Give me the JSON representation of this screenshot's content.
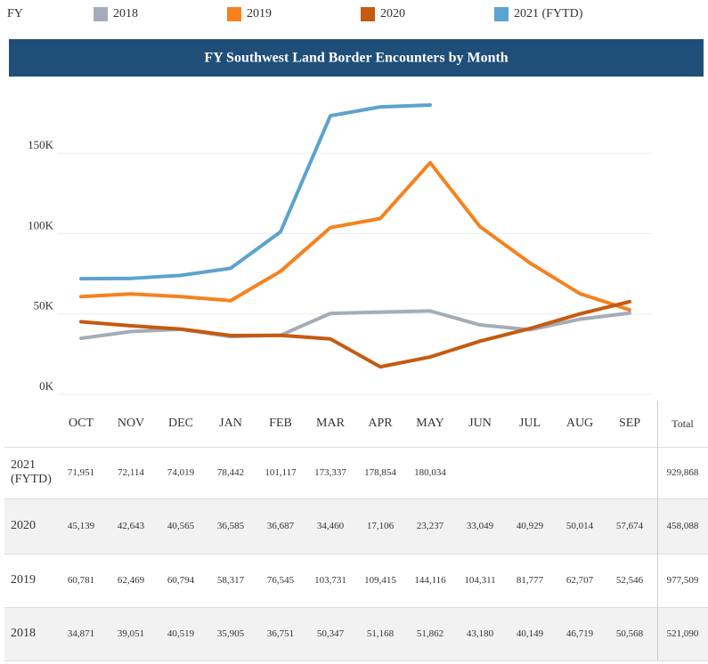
{
  "chart_data": {
    "type": "line",
    "title": "FY Southwest Land Border Encounters by Month",
    "legend_title": "FY",
    "total_header": "Total",
    "categories": [
      "OCT",
      "NOV",
      "DEC",
      "JAN",
      "FEB",
      "MAR",
      "APR",
      "MAY",
      "JUN",
      "JUL",
      "AUG",
      "SEP"
    ],
    "ylim": [
      0,
      190000
    ],
    "yticks": [
      {
        "value": 0,
        "label": "0K"
      },
      {
        "value": 50000,
        "label": "50K"
      },
      {
        "value": 100000,
        "label": "100K"
      },
      {
        "value": 150000,
        "label": "150K"
      }
    ],
    "grid": true,
    "series": [
      {
        "name": "2018",
        "color": "#a5acb9",
        "values": [
          34871,
          39051,
          40519,
          35905,
          36751,
          50347,
          51168,
          51862,
          43180,
          40149,
          46719,
          50568
        ],
        "value_labels": [
          "34,871",
          "39,051",
          "40,519",
          "35,905",
          "36,751",
          "50,347",
          "51,168",
          "51,862",
          "43,180",
          "40,149",
          "46,719",
          "50,568"
        ],
        "total": "521,090"
      },
      {
        "name": "2019",
        "color": "#f5821f",
        "values": [
          60781,
          62469,
          60794,
          58317,
          76545,
          103731,
          109415,
          144116,
          104311,
          81777,
          62707,
          52546
        ],
        "value_labels": [
          "60,781",
          "62,469",
          "60,794",
          "58,317",
          "76,545",
          "103,731",
          "109,415",
          "144,116",
          "104,311",
          "81,777",
          "62,707",
          "52,546"
        ],
        "total": "977,509"
      },
      {
        "name": "2020",
        "color": "#c55a11",
        "values": [
          45139,
          42643,
          40565,
          36585,
          36687,
          34460,
          17106,
          23237,
          33049,
          40929,
          50014,
          57674
        ],
        "value_labels": [
          "45,139",
          "42,643",
          "40,565",
          "36,585",
          "36,687",
          "34,460",
          "17,106",
          "23,237",
          "33,049",
          "40,929",
          "50,014",
          "57,674"
        ],
        "total": "458,088"
      },
      {
        "name": "2021 (FYTD)",
        "color": "#5ba3d0",
        "values": [
          71951,
          72114,
          74019,
          78442,
          101117,
          173337,
          178854,
          180034,
          null,
          null,
          null,
          null
        ],
        "value_labels": [
          "71,951",
          "72,114",
          "74,019",
          "78,442",
          "101,117",
          "173,337",
          "178,854",
          "180,034",
          null,
          null,
          null,
          null
        ],
        "total": "929,868"
      }
    ]
  }
}
